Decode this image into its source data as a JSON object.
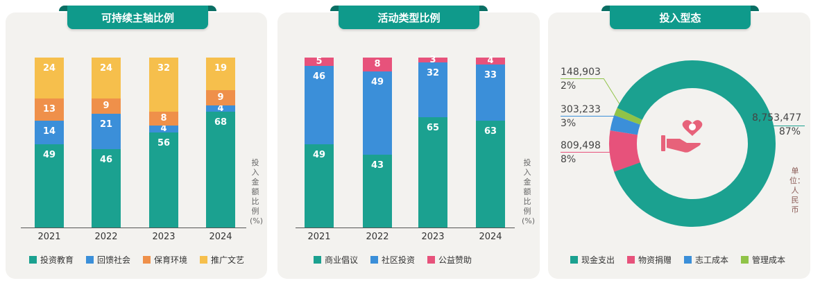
{
  "colors": {
    "teal": "#1ba190",
    "blue": "#3b8fd9",
    "orange": "#ef904a",
    "yellow": "#f6bf4c",
    "pink": "#e7527b",
    "green": "#90c348",
    "tab": "#0f9a8b"
  },
  "chart_data": [
    {
      "type": "bar",
      "stacked": true,
      "title": "可持续主轴比例",
      "categories": [
        "2021",
        "2022",
        "2023",
        "2024"
      ],
      "ylabel": "投入金额比例 (%)",
      "ylim": [
        0,
        100
      ],
      "series": [
        {
          "name": "投资教育",
          "color": "#1ba190",
          "values": [
            49,
            46,
            56,
            68
          ]
        },
        {
          "name": "回馈社会",
          "color": "#3b8fd9",
          "values": [
            14,
            21,
            4,
            4
          ]
        },
        {
          "name": "保育环境",
          "color": "#ef904a",
          "values": [
            13,
            9,
            8,
            9
          ]
        },
        {
          "name": "推广文艺",
          "color": "#f6bf4c",
          "values": [
            24,
            24,
            32,
            19
          ]
        }
      ]
    },
    {
      "type": "bar",
      "stacked": true,
      "title": "活动类型比例",
      "categories": [
        "2021",
        "2022",
        "2023",
        "2024"
      ],
      "ylabel": "投入金额比例 (%)",
      "ylim": [
        0,
        100
      ],
      "series": [
        {
          "name": "商业倡议",
          "color": "#1ba190",
          "values": [
            49,
            43,
            65,
            63
          ]
        },
        {
          "name": "社区投资",
          "color": "#3b8fd9",
          "values": [
            46,
            49,
            32,
            33
          ]
        },
        {
          "name": "公益赞助",
          "color": "#e7527b",
          "values": [
            5,
            8,
            3,
            4
          ]
        }
      ]
    },
    {
      "type": "pie",
      "donut": true,
      "title": "投入型态",
      "unit": "单位：人民币",
      "slices": [
        {
          "name": "物资捐赠",
          "color": "#e7527b",
          "value": 809498,
          "label": "809,498",
          "pct": "8%"
        },
        {
          "name": "志工成本",
          "color": "#3b8fd9",
          "value": 303233,
          "label": "303,233",
          "pct": "3%"
        },
        {
          "name": "管理成本",
          "color": "#90c348",
          "value": 148903,
          "label": "148,903",
          "pct": "2%"
        },
        {
          "name": "现金支出",
          "color": "#1ba190",
          "value": 8753477,
          "label": "8,753,477",
          "pct": "87%"
        }
      ],
      "legend": [
        "现金支出",
        "物资捐赠",
        "志工成本",
        "管理成本"
      ],
      "legend_placement": "bottom"
    }
  ]
}
